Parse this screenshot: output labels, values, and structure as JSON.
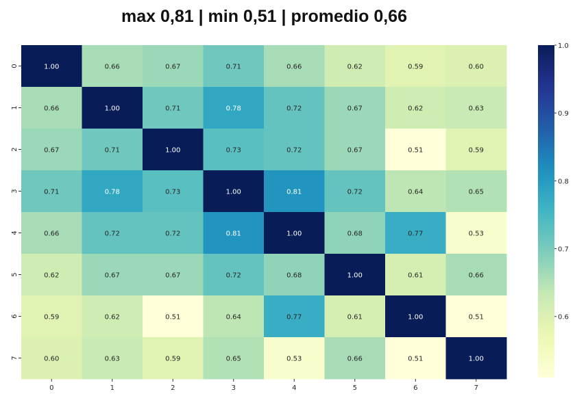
{
  "title": "max 0,81 | min 0,51 | promedio 0,66",
  "chart_data": {
    "type": "heatmap",
    "title": "max 0,81 | min 0,51 | promedio 0,66",
    "x_labels": [
      "0",
      "1",
      "2",
      "3",
      "4",
      "5",
      "6",
      "7"
    ],
    "y_labels": [
      "0",
      "1",
      "2",
      "3",
      "4",
      "5",
      "6",
      "7"
    ],
    "values": [
      [
        1.0,
        0.66,
        0.67,
        0.71,
        0.66,
        0.62,
        0.59,
        0.6
      ],
      [
        0.66,
        1.0,
        0.71,
        0.78,
        0.72,
        0.67,
        0.62,
        0.63
      ],
      [
        0.67,
        0.71,
        1.0,
        0.73,
        0.72,
        0.67,
        0.51,
        0.59
      ],
      [
        0.71,
        0.78,
        0.73,
        1.0,
        0.81,
        0.72,
        0.64,
        0.65
      ],
      [
        0.66,
        0.72,
        0.72,
        0.81,
        1.0,
        0.68,
        0.77,
        0.53
      ],
      [
        0.62,
        0.67,
        0.67,
        0.72,
        0.68,
        1.0,
        0.61,
        0.66
      ],
      [
        0.59,
        0.62,
        0.51,
        0.64,
        0.77,
        0.61,
        1.0,
        0.51
      ],
      [
        0.6,
        0.63,
        0.59,
        0.65,
        0.53,
        0.66,
        0.51,
        1.0
      ]
    ],
    "colormap": "YlGnBu",
    "vmin": 0.51,
    "vmax": 1.0,
    "colorbar_ticks": [
      "0.6",
      "0.7",
      "0.8",
      "0.9",
      "1.0"
    ],
    "colorbar_tick_values": [
      0.6,
      0.7,
      0.8,
      0.9,
      1.0
    ],
    "annotation_format": "0.00"
  }
}
